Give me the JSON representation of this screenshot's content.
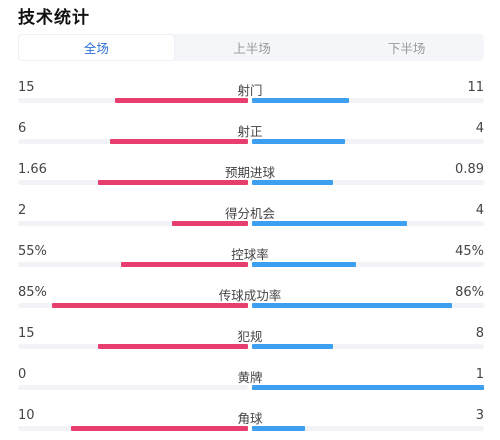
{
  "title": "技术统计",
  "tabs": [
    {
      "label": "全场",
      "active": true
    },
    {
      "label": "上半场",
      "active": false
    },
    {
      "label": "下半场",
      "active": false
    }
  ],
  "colors": {
    "home": "#e83e6e",
    "away": "#3d9ff0",
    "track": "#f2f3f6",
    "active_tab": "#2b6fd8"
  },
  "stats": [
    {
      "label": "射门",
      "home": "15",
      "away": "11",
      "home_fraction": 0.58,
      "away_fraction": 0.42
    },
    {
      "label": "射正",
      "home": "6",
      "away": "4",
      "home_fraction": 0.6,
      "away_fraction": 0.4
    },
    {
      "label": "预期进球",
      "home": "1.66",
      "away": "0.89",
      "home_fraction": 0.65,
      "away_fraction": 0.35
    },
    {
      "label": "得分机会",
      "home": "2",
      "away": "4",
      "home_fraction": 0.33,
      "away_fraction": 0.67
    },
    {
      "label": "控球率",
      "home": "55%",
      "away": "45%",
      "home_fraction": 0.55,
      "away_fraction": 0.45
    },
    {
      "label": "传球成功率",
      "home": "85%",
      "away": "86%",
      "home_fraction": 0.85,
      "away_fraction": 0.86
    },
    {
      "label": "犯规",
      "home": "15",
      "away": "8",
      "home_fraction": 0.65,
      "away_fraction": 0.35
    },
    {
      "label": "黄牌",
      "home": "0",
      "away": "1",
      "home_fraction": 0.0,
      "away_fraction": 1.0
    },
    {
      "label": "角球",
      "home": "10",
      "away": "3",
      "home_fraction": 0.77,
      "away_fraction": 0.23
    }
  ]
}
